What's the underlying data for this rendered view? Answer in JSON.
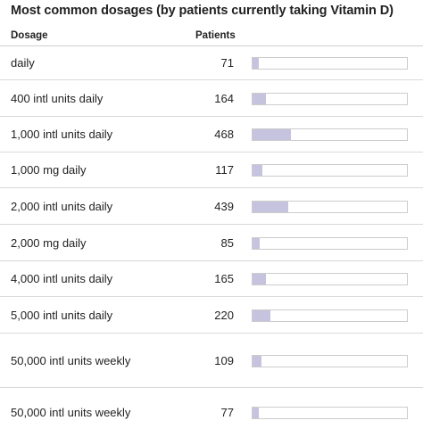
{
  "chart_data": {
    "type": "bar",
    "title": "Most common dosages (by patients currently taking Vitamin D)",
    "columns": {
      "dosage": "Dosage",
      "patients": "Patients"
    },
    "categories": [
      "daily",
      "400 intl units daily",
      "1,000 intl units daily",
      "1,000 mg daily",
      "2,000 intl units daily",
      "2,000 mg daily",
      "4,000 intl units daily",
      "5,000 intl units daily",
      "50,000 intl units weekly",
      "50,000 intl units weekly"
    ],
    "values": [
      71,
      164,
      468,
      117,
      439,
      85,
      165,
      220,
      109,
      77
    ],
    "xlim": [
      0,
      2000
    ]
  },
  "colors": {
    "bar": "#c5c3dd",
    "track_border": "#cccccc",
    "divider": "#d9d9d9"
  }
}
